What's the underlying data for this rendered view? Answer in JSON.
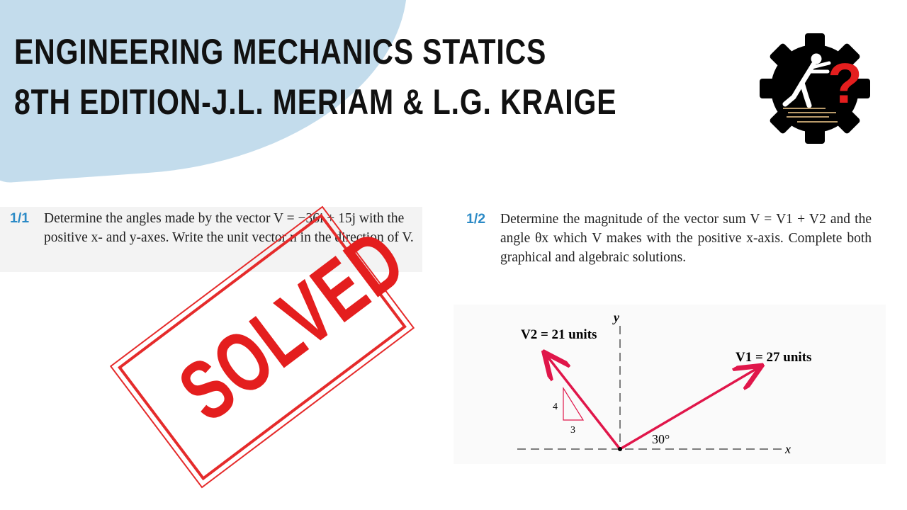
{
  "header": {
    "line1": "ENGINEERING MECHANICS STATICS",
    "line2": "8TH EDITION-J.L. MERIAM & L.G. KRAIGE"
  },
  "logo": {
    "icon": "gear-with-person-pushing-question-mark",
    "accent": "#e41e1e"
  },
  "problem1": {
    "number": "1/1",
    "text": "Determine the angles made by the vector V = −36i + 15j with the positive x- and y-axes. Write the unit vector n in the direction of V."
  },
  "stamp": {
    "text": "SOLVED",
    "color": "#e41e1e"
  },
  "problem2": {
    "number": "1/2",
    "text": "Determine the magnitude of the vector sum V = V1 + V2 and the angle θx which V makes with the positive x-axis. Complete both graphical and algebraic solutions.",
    "figure": {
      "v1_label": "V1 = 27 units",
      "v2_label": "V2 = 21 units",
      "angle_label": "30°",
      "slope_rise": "4",
      "slope_run": "3",
      "x_axis": "x",
      "y_axis": "y"
    }
  }
}
